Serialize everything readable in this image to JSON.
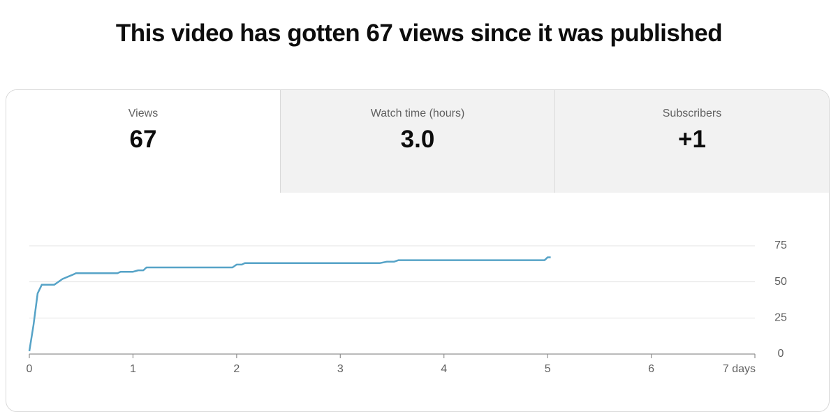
{
  "header": {
    "title": "This video has gotten 67 views since it was published"
  },
  "tabs": [
    {
      "label": "Views",
      "value": "67"
    },
    {
      "label": "Watch time (hours)",
      "value": "3.0"
    },
    {
      "label": "Subscribers",
      "value": "+1"
    }
  ],
  "chart_data": {
    "type": "line",
    "x": [
      0,
      0.04,
      0.08,
      0.12,
      0.24,
      0.32,
      0.42,
      0.45,
      0.85,
      0.88,
      1.0,
      1.05,
      1.1,
      1.13,
      1.96,
      2.0,
      2.05,
      2.08,
      3.38,
      3.45,
      3.52,
      3.56,
      4.97,
      5.0,
      5.03
    ],
    "values": [
      2,
      20,
      42,
      48,
      48,
      52,
      55,
      56,
      56,
      57,
      57,
      58,
      58,
      60,
      60,
      62,
      62,
      63,
      63,
      64,
      64,
      65,
      65,
      67,
      67
    ],
    "color": "#56a3c7",
    "xlim": [
      0,
      7
    ],
    "xticks": [
      0,
      1,
      2,
      3,
      4,
      5,
      6,
      {
        "value": 7,
        "label": "7 days"
      }
    ],
    "ylim": [
      0,
      75
    ],
    "yticks": [
      0,
      25,
      50,
      75
    ],
    "grid": true
  }
}
